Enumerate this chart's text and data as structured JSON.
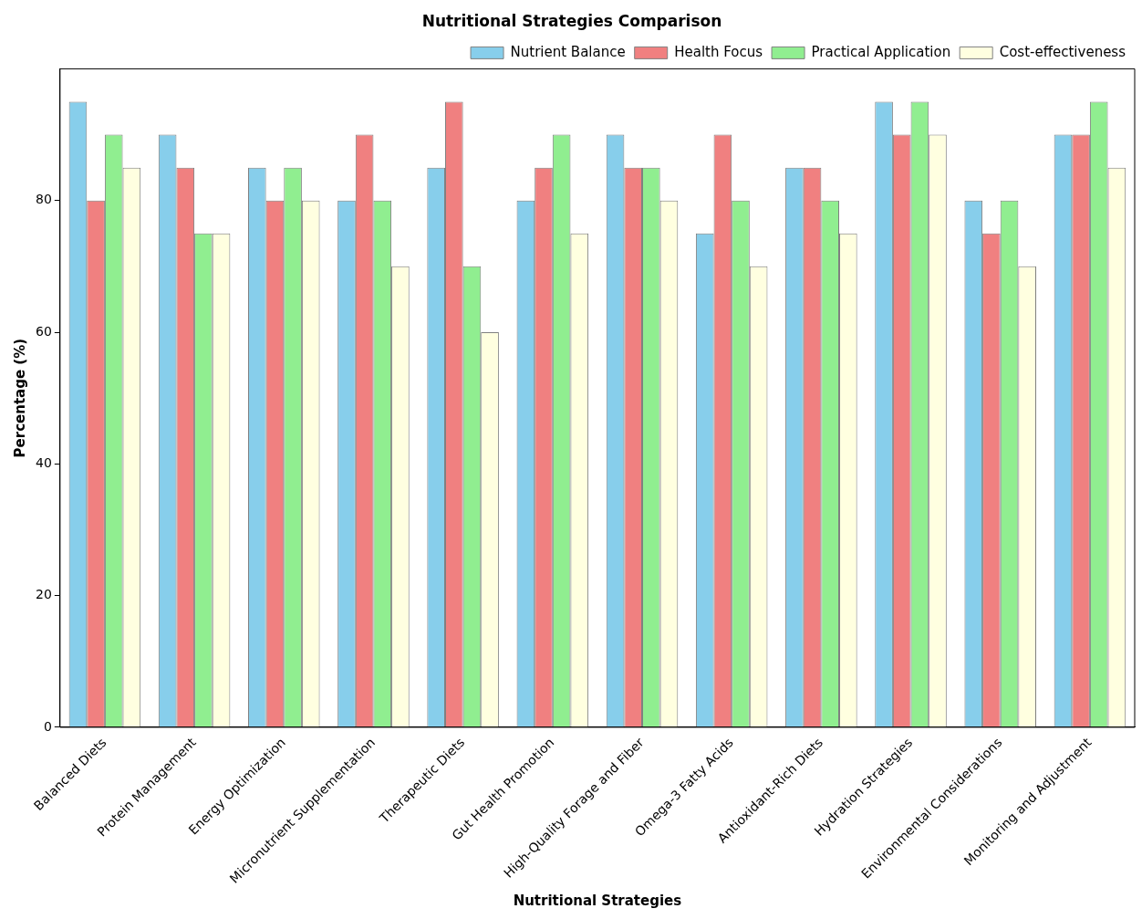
{
  "chart_data": {
    "type": "bar",
    "title": "Nutritional Strategies Comparison",
    "xlabel": "Nutritional Strategies",
    "ylabel": "Percentage (%)",
    "categories": [
      "Balanced Diets",
      "Protein Management",
      "Energy Optimization",
      "Micronutrient Supplementation",
      "Therapeutic Diets",
      "Gut Health Promotion",
      "High-Quality Forage and Fiber",
      "Omega-3 Fatty Acids",
      "Antioxidant-Rich Diets",
      "Hydration Strategies",
      "Environmental Considerations",
      "Monitoring and Adjustment"
    ],
    "series": [
      {
        "name": "Nutrient Balance",
        "color": "#87ceeb",
        "values": [
          95,
          90,
          85,
          80,
          85,
          80,
          90,
          75,
          85,
          95,
          80,
          90
        ]
      },
      {
        "name": "Health Focus",
        "color": "#f08080",
        "values": [
          80,
          85,
          80,
          90,
          95,
          85,
          85,
          90,
          85,
          90,
          75,
          90
        ]
      },
      {
        "name": "Practical Application",
        "color": "#90ee90",
        "values": [
          90,
          75,
          85,
          80,
          70,
          90,
          85,
          80,
          80,
          95,
          80,
          95
        ]
      },
      {
        "name": "Cost-effectiveness",
        "color": "#ffffe0",
        "values": [
          85,
          75,
          80,
          70,
          60,
          75,
          80,
          70,
          75,
          90,
          70,
          85
        ]
      }
    ],
    "ylim": [
      0,
      100
    ],
    "yticks": [
      0,
      20,
      40,
      60,
      80
    ],
    "grid": false,
    "legend": "top right"
  }
}
